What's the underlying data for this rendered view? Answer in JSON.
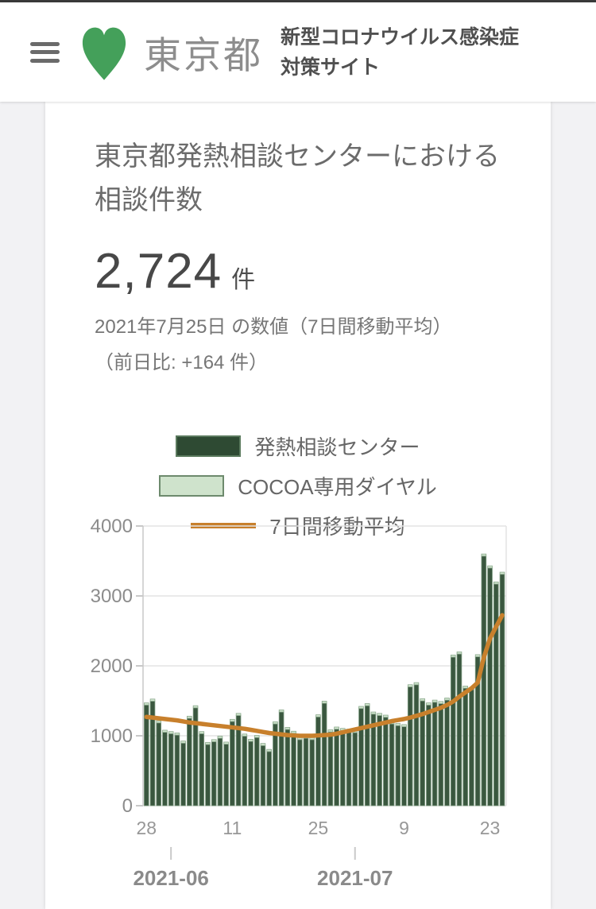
{
  "page": {
    "top_bar_color": "#3a3a3a",
    "background_color": "#f2f2f4"
  },
  "header": {
    "logo": {
      "icon": "tokyo-ginkgo-leaf",
      "color": "#44a05a",
      "text": "東京都"
    },
    "site_title_line1": "新型コロナウイルス感染症",
    "site_title_line2": "対策サイト"
  },
  "card": {
    "title": "東京都発熱相談センターにおける相談件数",
    "headline_value": "2,724",
    "headline_unit": "件",
    "date_note": "2021年7月25日 の数値（7日間移動平均）",
    "diff_note": "（前日比: +164 件）",
    "legend": [
      {
        "label": "発熱相談センター",
        "swatch": "dark-green-box",
        "color": "#2e4a33"
      },
      {
        "label": "COCOA専用ダイヤル",
        "swatch": "light-green-box",
        "color": "#cfe3cc"
      },
      {
        "label": "7日間移動平均",
        "swatch": "orange-line",
        "color": "#c8802c"
      }
    ]
  },
  "chart_data": {
    "type": "bar",
    "title": "東京都発熱相談センターにおける相談件数",
    "x": [
      "05-28",
      "05-29",
      "05-30",
      "05-31",
      "06-01",
      "06-02",
      "06-03",
      "06-04",
      "06-05",
      "06-06",
      "06-07",
      "06-08",
      "06-09",
      "06-10",
      "06-11",
      "06-12",
      "06-13",
      "06-14",
      "06-15",
      "06-16",
      "06-17",
      "06-18",
      "06-19",
      "06-20",
      "06-21",
      "06-22",
      "06-23",
      "06-24",
      "06-25",
      "06-26",
      "06-27",
      "06-28",
      "06-29",
      "06-30",
      "07-01",
      "07-02",
      "07-03",
      "07-04",
      "07-05",
      "07-06",
      "07-07",
      "07-08",
      "07-09",
      "07-10",
      "07-11",
      "07-12",
      "07-13",
      "07-14",
      "07-15",
      "07-16",
      "07-17",
      "07-18",
      "07-19",
      "07-20",
      "07-21",
      "07-22",
      "07-23",
      "07-24",
      "07-25"
    ],
    "series": [
      {
        "name": "発熱相談センター",
        "type": "bar",
        "color": "#3a573f",
        "values": [
          1440,
          1495,
          1185,
          1050,
          1030,
          1010,
          895,
          1250,
          1400,
          1030,
          875,
          915,
          965,
          880,
          1205,
          1290,
          995,
          920,
          975,
          860,
          775,
          1170,
          1340,
          1090,
          1035,
          945,
          965,
          945,
          1270,
          1465,
          1055,
          1095,
          1075,
          1065,
          1045,
          1390,
          1430,
          1310,
          1290,
          1265,
          1170,
          1145,
          1130,
          1700,
          1730,
          1500,
          1440,
          1480,
          1460,
          1510,
          2125,
          2170,
          1680,
          1660,
          2130,
          3570,
          3400,
          3170,
          3310
        ]
      },
      {
        "name": "COCOA専用ダイヤル",
        "type": "bar-stacked-top",
        "color": "#cfe4cd",
        "values_approx_per_day": 30,
        "note": "tiny light-green cap stacked on top of each bar"
      },
      {
        "name": "7日間移動平均",
        "type": "line",
        "color": "#c8802c",
        "values": [
          1270,
          1260,
          1250,
          1240,
          1230,
          1220,
          1205,
          1190,
          1180,
          1170,
          1160,
          1150,
          1140,
          1130,
          1120,
          1110,
          1100,
          1085,
          1070,
          1055,
          1040,
          1030,
          1020,
          1010,
          1005,
          1000,
          1000,
          1000,
          1005,
          1010,
          1015,
          1030,
          1050,
          1070,
          1090,
          1110,
          1130,
          1150,
          1170,
          1190,
          1210,
          1225,
          1240,
          1260,
          1285,
          1310,
          1340,
          1370,
          1400,
          1440,
          1490,
          1560,
          1620,
          1680,
          1760,
          2120,
          2390,
          2560,
          2724
        ]
      }
    ],
    "ylim": [
      0,
      4000
    ],
    "yticks": [
      0,
      1000,
      2000,
      3000,
      4000
    ],
    "xticks": [
      {
        "index": 0,
        "label": "28"
      },
      {
        "index": 14,
        "label": "11"
      },
      {
        "index": 28,
        "label": "25"
      },
      {
        "index": 42,
        "label": "9"
      },
      {
        "index": 56,
        "label": "23"
      }
    ],
    "month_marks": [
      {
        "index": 4,
        "label": "2021-06"
      },
      {
        "index": 34,
        "label": "2021-07"
      }
    ],
    "grid": true,
    "legend_position": "above-chart"
  }
}
